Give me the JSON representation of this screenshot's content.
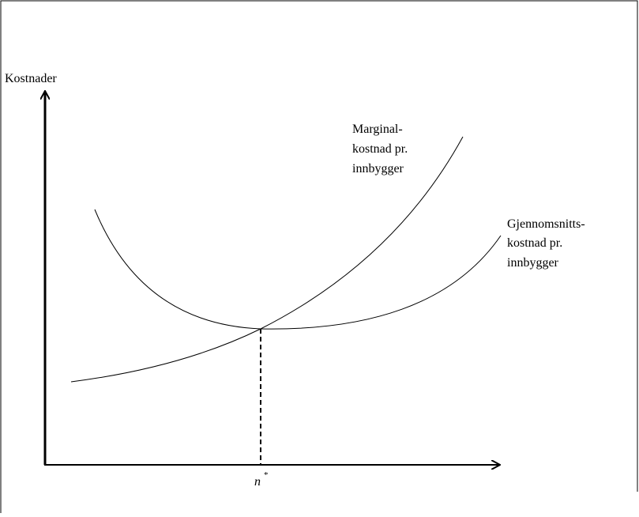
{
  "y_axis_label": "Kostnader",
  "x_axis_label": {
    "base": "n",
    "sup": "*"
  },
  "curves": [
    {
      "label": [
        "Marginal-",
        "kostnad pr.",
        "innbygger"
      ]
    },
    {
      "label": [
        "Gjennomsnitts-",
        "kostnad pr.",
        "innbygger"
      ]
    }
  ]
}
